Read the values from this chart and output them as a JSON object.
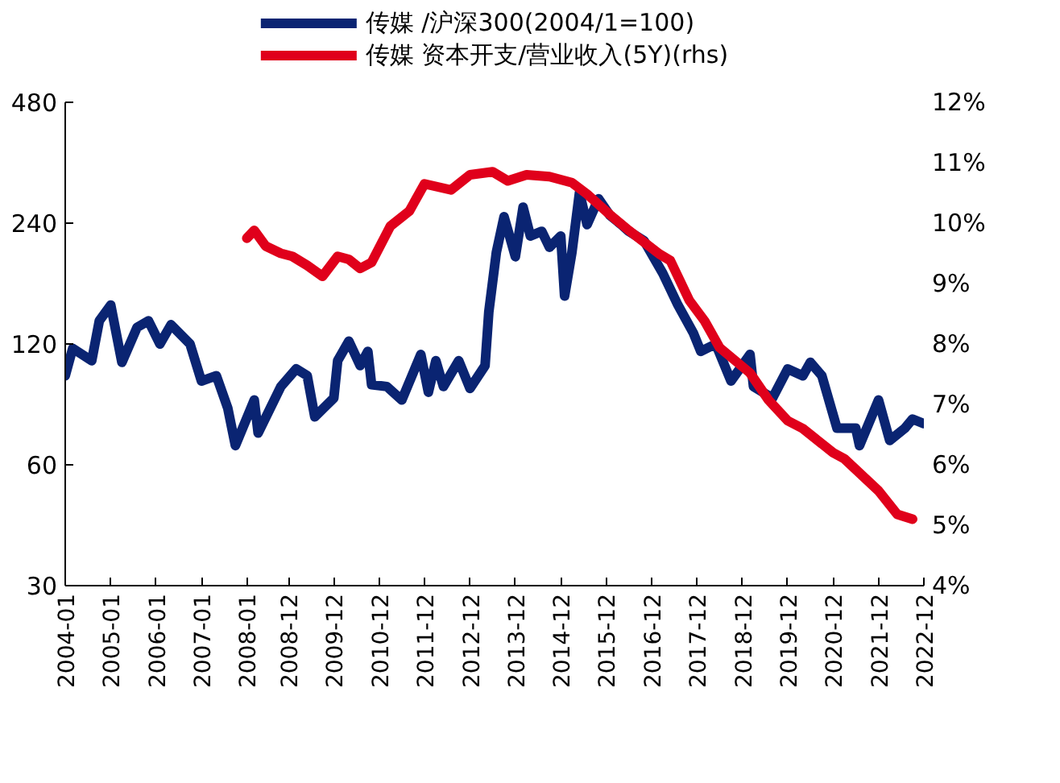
{
  "chart_data": {
    "type": "line",
    "legend": "top",
    "grid": false,
    "log": "y",
    "line_style": "solid",
    "marker": "none",
    "xlim": [
      "2004-01",
      "2022-12"
    ],
    "xticks": [
      "2004-01",
      "2005-01",
      "2006-01",
      "2007-01",
      "2008-01",
      "2008-12",
      "2009-12",
      "2010-12",
      "2011-12",
      "2012-12",
      "2013-12",
      "2014-12",
      "2015-12",
      "2016-12",
      "2017-12",
      "2018-12",
      "2019-12",
      "2020-12",
      "2021-12",
      "2022-12"
    ],
    "ylim": [
      30,
      480
    ],
    "yticks": [
      30,
      60,
      120,
      240,
      480
    ],
    "y2lim": [
      4,
      12
    ],
    "y2ticks": [
      {
        "value": 4,
        "label": "4%"
      },
      {
        "value": 5,
        "label": "5%"
      },
      {
        "value": 6,
        "label": "6%"
      },
      {
        "value": 7,
        "label": "7%"
      },
      {
        "value": 8,
        "label": "8%"
      },
      {
        "value": 9,
        "label": "9%"
      },
      {
        "value": 10,
        "label": "10%"
      },
      {
        "value": 11,
        "label": "11%"
      },
      {
        "value": 12,
        "label": "12%"
      }
    ],
    "series": [
      {
        "name": "传媒 /沪深300(2004/1=100)",
        "color": "#0a2472",
        "x": [
          "2004-01",
          "2004-03",
          "2004-08",
          "2004-10",
          "2005-01",
          "2005-04",
          "2005-08",
          "2005-11",
          "2006-02",
          "2006-05",
          "2006-10",
          "2007-01",
          "2007-05",
          "2007-08",
          "2007-10",
          "2008-03",
          "2008-04",
          "2008-10",
          "2009-02",
          "2009-05",
          "2009-07",
          "2009-12",
          "2010-01",
          "2010-04",
          "2010-07",
          "2010-09",
          "2010-10",
          "2011-02",
          "2011-06",
          "2011-11",
          "2012-01",
          "2012-03",
          "2012-05",
          "2012-09",
          "2012-12",
          "2013-04",
          "2013-05",
          "2013-07",
          "2013-09",
          "2013-12",
          "2014-02",
          "2014-04",
          "2014-07",
          "2014-09",
          "2014-12",
          "2015-01",
          "2015-03",
          "2015-05",
          "2015-07",
          "2015-10",
          "2016-01",
          "2016-04",
          "2016-06",
          "2016-10",
          "2017-03",
          "2017-07",
          "2017-11",
          "2018-01",
          "2018-05",
          "2018-09",
          "2019-02",
          "2019-03",
          "2019-08",
          "2019-12",
          "2020-04",
          "2020-06",
          "2020-09",
          "2021-01",
          "2021-06",
          "2021-07",
          "2021-12",
          "2022-03",
          "2022-07",
          "2022-09",
          "2022-12"
        ],
        "values": [
          100,
          117,
          109,
          137,
          150,
          108,
          132,
          137,
          120,
          134,
          120,
          97,
          100,
          83,
          67,
          87,
          72,
          94,
          104,
          100,
          79,
          88,
          109,
          122,
          106,
          115,
          95,
          94,
          87,
          113,
          91,
          109,
          94,
          109,
          93,
          106,
          144,
          203,
          249,
          198,
          263,
          223,
          229,
          209,
          223,
          158,
          203,
          286,
          238,
          276,
          251,
          238,
          229,
          217,
          180,
          150,
          128,
          115,
          120,
          97,
          113,
          94,
          88,
          104,
          100,
          108,
          100,
          74,
          74,
          67,
          87,
          69,
          74,
          78,
          76
        ]
      },
      {
        "name": "传媒 资本开支/营业收入(5Y)(rhs)",
        "color": "#e0001b",
        "axis": "y2",
        "x": [
          "2008-01",
          "2008-03",
          "2008-06",
          "2008-10",
          "2009-01",
          "2009-05",
          "2009-09",
          "2010-01",
          "2010-04",
          "2010-07",
          "2010-10",
          "2011-03",
          "2011-08",
          "2011-12",
          "2012-07",
          "2012-12",
          "2013-06",
          "2013-10",
          "2014-03",
          "2014-09",
          "2015-03",
          "2015-07",
          "2016-01",
          "2016-06",
          "2017-02",
          "2017-05",
          "2017-10",
          "2018-02",
          "2018-06",
          "2019-02",
          "2019-07",
          "2019-12",
          "2020-04",
          "2020-12",
          "2021-03",
          "2021-12",
          "2022-05",
          "2022-09"
        ],
        "values": [
          9.75,
          9.88,
          9.62,
          9.5,
          9.45,
          9.3,
          9.12,
          9.45,
          9.4,
          9.25,
          9.35,
          9.95,
          10.2,
          10.65,
          10.55,
          10.8,
          10.85,
          10.7,
          10.8,
          10.77,
          10.67,
          10.48,
          10.14,
          9.88,
          9.49,
          9.38,
          8.72,
          8.38,
          7.94,
          7.52,
          7.07,
          6.73,
          6.6,
          6.2,
          6.1,
          5.57,
          5.18,
          5.1
        ]
      }
    ]
  }
}
